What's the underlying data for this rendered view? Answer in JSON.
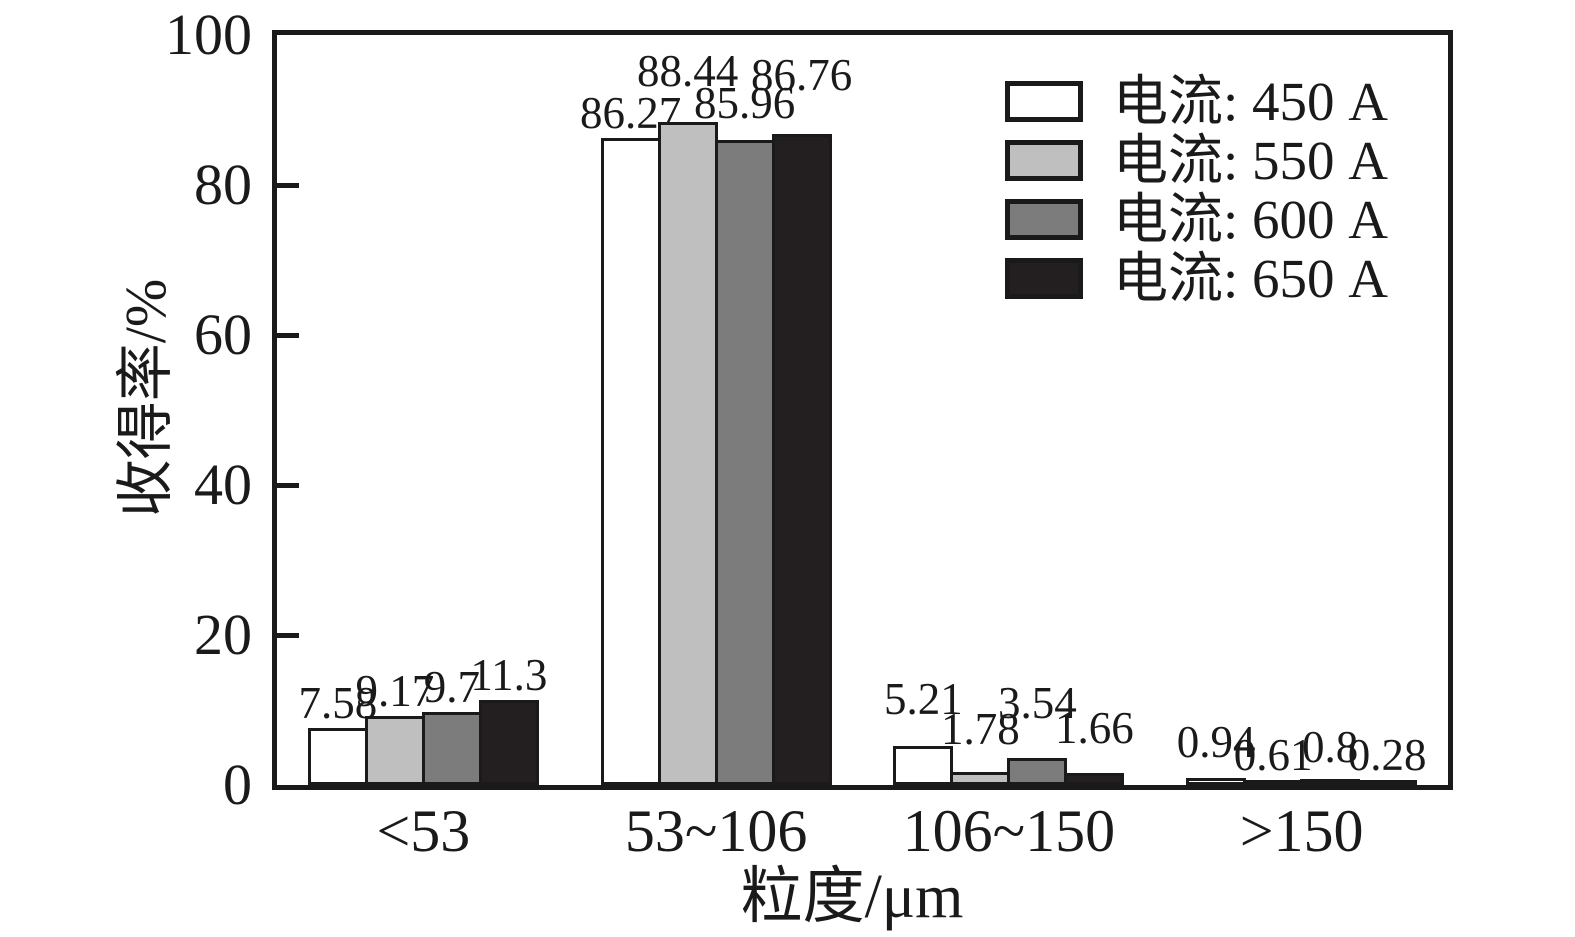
{
  "chart_data": {
    "type": "bar",
    "title": "",
    "xlabel": "粒度/μm",
    "ylabel": "收得率/%",
    "ylim": [
      0,
      100
    ],
    "yticks": [
      0,
      20,
      40,
      60,
      80,
      100
    ],
    "grid": false,
    "legend_position": "top-right",
    "categories": [
      "<53",
      "53~106",
      "106~150",
      ">150"
    ],
    "series": [
      {
        "name": "电流: 450 A",
        "color": "#ffffff",
        "values": [
          7.58,
          86.27,
          5.21,
          0.94
        ]
      },
      {
        "name": "电流: 550 A",
        "color": "#bfbfbf",
        "values": [
          9.17,
          88.44,
          1.78,
          0.61
        ]
      },
      {
        "name": "电流: 600 A",
        "color": "#7c7c7c",
        "values": [
          9.7,
          85.96,
          3.54,
          0.8
        ]
      },
      {
        "name": "电流: 650 A",
        "color": "#231f20",
        "values": [
          11.3,
          86.76,
          1.66,
          0.28
        ]
      }
    ],
    "bar_border_color": "#1a1a1a",
    "axis_color": "#1a1a1a"
  }
}
